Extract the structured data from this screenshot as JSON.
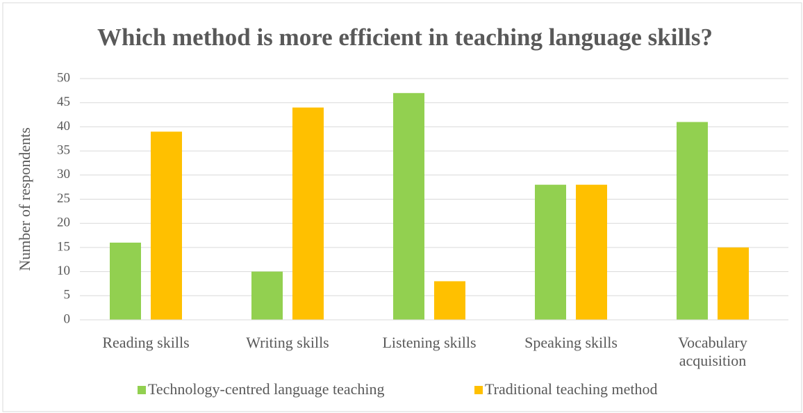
{
  "chart_data": {
    "type": "bar",
    "title": "Which method is more efficient in teaching language skills?",
    "y_label": "Number of respondents",
    "categories": [
      "Reading skills",
      "Writing skills",
      "Listening skills",
      "Speaking skills",
      "Vocabulary acquisition"
    ],
    "series": [
      {
        "name": "Technology-centred language teaching",
        "color": "#92d050",
        "values": [
          16,
          10,
          47,
          28,
          41
        ]
      },
      {
        "name": "Traditional teaching method",
        "color": "#ffc000",
        "values": [
          39,
          44,
          8,
          28,
          15
        ]
      }
    ],
    "ylim": [
      0,
      50
    ],
    "yticks": [
      0,
      5,
      10,
      15,
      20,
      25,
      30,
      35,
      40,
      45,
      50
    ],
    "grid": true,
    "legend": "bottom"
  }
}
